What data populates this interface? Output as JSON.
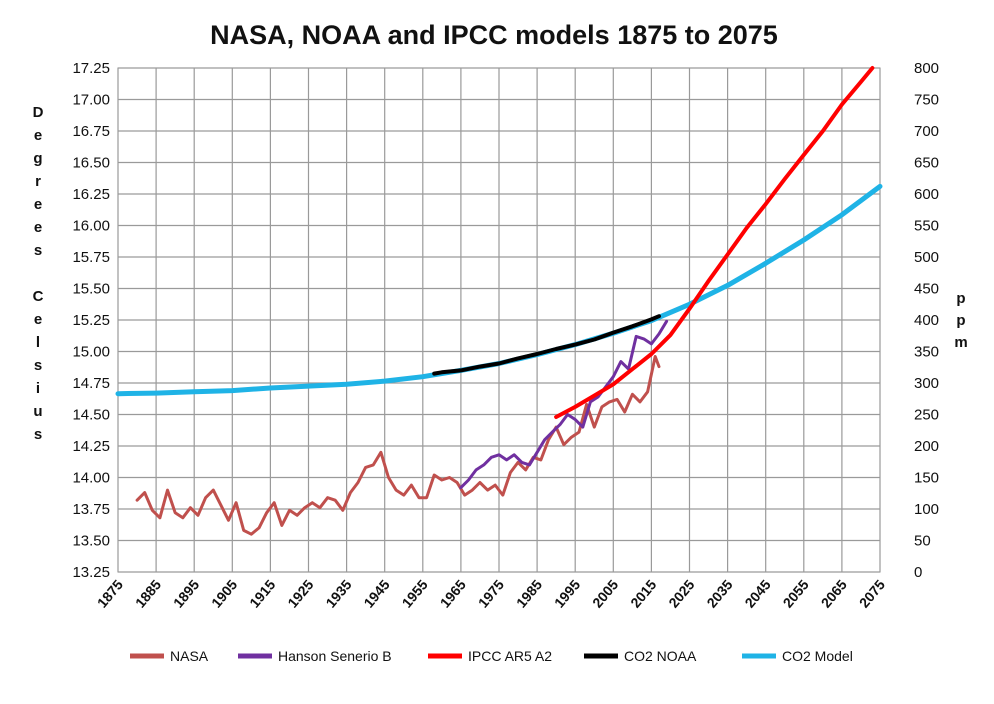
{
  "chart_data": {
    "type": "line",
    "title": "NASA, NOAA and IPCC models 1875 to 2075",
    "ylabel_left": [
      "D",
      "e",
      "g",
      "r",
      "e",
      "e",
      "s",
      "",
      "C",
      "e",
      "l",
      "s",
      "i",
      "u",
      "s"
    ],
    "ylabel_right": [
      "p",
      "p",
      "m"
    ],
    "xlim": [
      1875,
      2075
    ],
    "ylim_left": [
      13.25,
      17.25
    ],
    "ylim_right": [
      0,
      800
    ],
    "grid": true,
    "legend_position": "bottom",
    "x_ticks": [
      "1875",
      "1885",
      "1895",
      "1905",
      "1915",
      "1925",
      "1935",
      "1945",
      "1955",
      "1965",
      "1975",
      "1985",
      "1995",
      "2005",
      "2015",
      "2025",
      "2035",
      "2045",
      "2055",
      "2065",
      "2075"
    ],
    "y_ticks_left": [
      "13.25",
      "13.50",
      "13.75",
      "14.00",
      "14.25",
      "14.50",
      "14.75",
      "15.00",
      "15.25",
      "15.50",
      "15.75",
      "16.00",
      "16.25",
      "16.50",
      "16.75",
      "17.00",
      "17.25"
    ],
    "y_ticks_right": [
      "0",
      "50",
      "100",
      "150",
      "200",
      "250",
      "300",
      "350",
      "400",
      "450",
      "500",
      "550",
      "600",
      "650",
      "700",
      "750",
      "800"
    ],
    "series": [
      {
        "name": "NASA",
        "axis": "left",
        "color": "#c0504d",
        "points": [
          [
            1880,
            13.82
          ],
          [
            1882,
            13.88
          ],
          [
            1884,
            13.74
          ],
          [
            1886,
            13.68
          ],
          [
            1888,
            13.9
          ],
          [
            1890,
            13.72
          ],
          [
            1892,
            13.68
          ],
          [
            1894,
            13.76
          ],
          [
            1896,
            13.7
          ],
          [
            1898,
            13.84
          ],
          [
            1900,
            13.9
          ],
          [
            1902,
            13.78
          ],
          [
            1904,
            13.66
          ],
          [
            1906,
            13.8
          ],
          [
            1908,
            13.58
          ],
          [
            1910,
            13.55
          ],
          [
            1912,
            13.6
          ],
          [
            1914,
            13.72
          ],
          [
            1916,
            13.8
          ],
          [
            1918,
            13.62
          ],
          [
            1920,
            13.74
          ],
          [
            1922,
            13.7
          ],
          [
            1924,
            13.76
          ],
          [
            1926,
            13.8
          ],
          [
            1928,
            13.76
          ],
          [
            1930,
            13.84
          ],
          [
            1932,
            13.82
          ],
          [
            1934,
            13.74
          ],
          [
            1936,
            13.88
          ],
          [
            1938,
            13.96
          ],
          [
            1940,
            14.08
          ],
          [
            1942,
            14.1
          ],
          [
            1944,
            14.2
          ],
          [
            1946,
            14.0
          ],
          [
            1948,
            13.9
          ],
          [
            1950,
            13.86
          ],
          [
            1952,
            13.94
          ],
          [
            1954,
            13.84
          ],
          [
            1956,
            13.84
          ],
          [
            1958,
            14.02
          ],
          [
            1960,
            13.98
          ],
          [
            1962,
            14.0
          ],
          [
            1964,
            13.96
          ],
          [
            1966,
            13.86
          ],
          [
            1968,
            13.9
          ],
          [
            1970,
            13.96
          ],
          [
            1972,
            13.9
          ],
          [
            1974,
            13.94
          ],
          [
            1976,
            13.86
          ],
          [
            1978,
            14.04
          ],
          [
            1980,
            14.12
          ],
          [
            1982,
            14.06
          ],
          [
            1984,
            14.16
          ],
          [
            1986,
            14.14
          ],
          [
            1988,
            14.3
          ],
          [
            1990,
            14.4
          ],
          [
            1992,
            14.26
          ],
          [
            1994,
            14.32
          ],
          [
            1996,
            14.36
          ],
          [
            1998,
            14.58
          ],
          [
            2000,
            14.4
          ],
          [
            2002,
            14.56
          ],
          [
            2004,
            14.6
          ],
          [
            2006,
            14.62
          ],
          [
            2008,
            14.52
          ],
          [
            2010,
            14.66
          ],
          [
            2012,
            14.6
          ],
          [
            2014,
            14.68
          ],
          [
            2016,
            14.96
          ],
          [
            2017,
            14.88
          ]
        ]
      },
      {
        "name": "Hanson Senerio B",
        "axis": "left",
        "color": "#7030a0",
        "points": [
          [
            1965,
            13.92
          ],
          [
            1967,
            13.98
          ],
          [
            1969,
            14.06
          ],
          [
            1971,
            14.1
          ],
          [
            1973,
            14.16
          ],
          [
            1975,
            14.18
          ],
          [
            1977,
            14.14
          ],
          [
            1979,
            14.18
          ],
          [
            1981,
            14.12
          ],
          [
            1983,
            14.1
          ],
          [
            1985,
            14.2
          ],
          [
            1987,
            14.3
          ],
          [
            1989,
            14.36
          ],
          [
            1991,
            14.42
          ],
          [
            1993,
            14.5
          ],
          [
            1995,
            14.46
          ],
          [
            1997,
            14.4
          ],
          [
            1999,
            14.6
          ],
          [
            2001,
            14.64
          ],
          [
            2003,
            14.72
          ],
          [
            2005,
            14.8
          ],
          [
            2007,
            14.92
          ],
          [
            2009,
            14.86
          ],
          [
            2011,
            15.12
          ],
          [
            2013,
            15.1
          ],
          [
            2015,
            15.06
          ],
          [
            2017,
            15.14
          ],
          [
            2019,
            15.24
          ]
        ]
      },
      {
        "name": "IPCC AR5 A2",
        "axis": "left",
        "color": "#ff0000",
        "points": [
          [
            1990,
            14.48
          ],
          [
            1995,
            14.56
          ],
          [
            2000,
            14.65
          ],
          [
            2005,
            14.74
          ],
          [
            2010,
            14.86
          ],
          [
            2015,
            14.98
          ],
          [
            2020,
            15.13
          ],
          [
            2025,
            15.34
          ],
          [
            2030,
            15.56
          ],
          [
            2035,
            15.77
          ],
          [
            2040,
            15.98
          ],
          [
            2045,
            16.17
          ],
          [
            2050,
            16.37
          ],
          [
            2055,
            16.56
          ],
          [
            2060,
            16.75
          ],
          [
            2065,
            16.96
          ],
          [
            2070,
            17.14
          ],
          [
            2073,
            17.25
          ]
        ]
      },
      {
        "name": "CO2 NOAA",
        "axis": "right",
        "color": "#000000",
        "points": [
          [
            1958,
            315
          ],
          [
            1960,
            317
          ],
          [
            1965,
            320
          ],
          [
            1970,
            326
          ],
          [
            1975,
            331
          ],
          [
            1980,
            339
          ],
          [
            1985,
            346
          ],
          [
            1990,
            354
          ],
          [
            1995,
            361
          ],
          [
            2000,
            369
          ],
          [
            2005,
            380
          ],
          [
            2010,
            390
          ],
          [
            2015,
            401
          ],
          [
            2017,
            406
          ]
        ]
      },
      {
        "name": "CO2 Model",
        "axis": "right",
        "color": "#1fb3e6",
        "points": [
          [
            1875,
            283
          ],
          [
            1885,
            284
          ],
          [
            1895,
            286
          ],
          [
            1905,
            288
          ],
          [
            1915,
            292
          ],
          [
            1925,
            295
          ],
          [
            1935,
            298
          ],
          [
            1945,
            303
          ],
          [
            1955,
            310
          ],
          [
            1965,
            320
          ],
          [
            1975,
            331
          ],
          [
            1985,
            345
          ],
          [
            1995,
            361
          ],
          [
            2005,
            379
          ],
          [
            2015,
            399
          ],
          [
            2025,
            425
          ],
          [
            2035,
            455
          ],
          [
            2045,
            490
          ],
          [
            2055,
            527
          ],
          [
            2065,
            567
          ],
          [
            2075,
            612
          ]
        ]
      }
    ]
  }
}
